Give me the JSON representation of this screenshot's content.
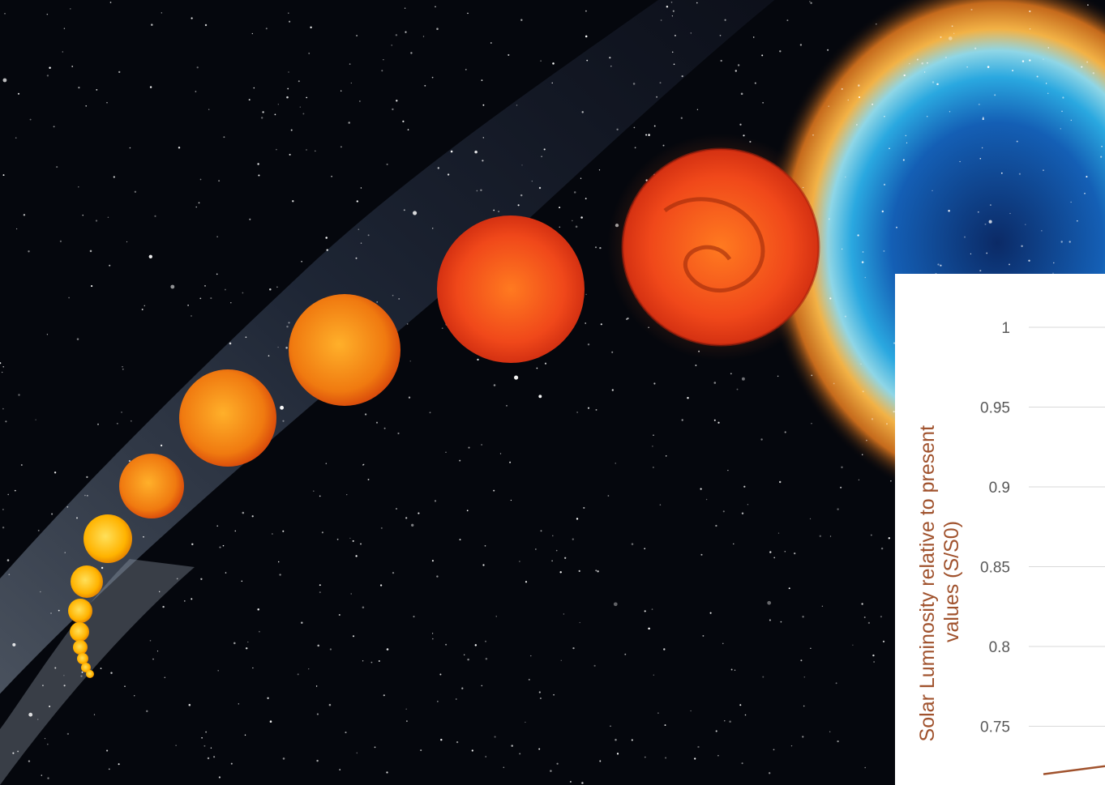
{
  "scene": {
    "description_icons": [
      "milky-way-background",
      "helix-nebula",
      "sun-evolution-sequence"
    ],
    "colors": {
      "space": "#05070d",
      "milky_way": "#3a4a66",
      "sun_young": "#ffc21a",
      "sun_old": "#e83a12",
      "nebula_outer": "#f0a030",
      "nebula_inner": "#1a7fd0"
    }
  },
  "chart_data": {
    "type": "line",
    "title": "",
    "xlabel": "",
    "ylabel_lines": [
      "Solar Luminosity relative to present",
      "values (S/S0)"
    ],
    "yticks": [
      "1",
      "0.95",
      "0.9",
      "0.85",
      "0.8",
      "0.75"
    ],
    "ytick_values": [
      1,
      0.95,
      0.9,
      0.85,
      0.8,
      0.75
    ],
    "ylim": [
      0.72,
      1.0
    ],
    "grid": true,
    "line_color": "#a0522d",
    "label_color": "#a0522d",
    "series": [
      {
        "values": [
          0.72,
          0.725
        ]
      }
    ]
  }
}
